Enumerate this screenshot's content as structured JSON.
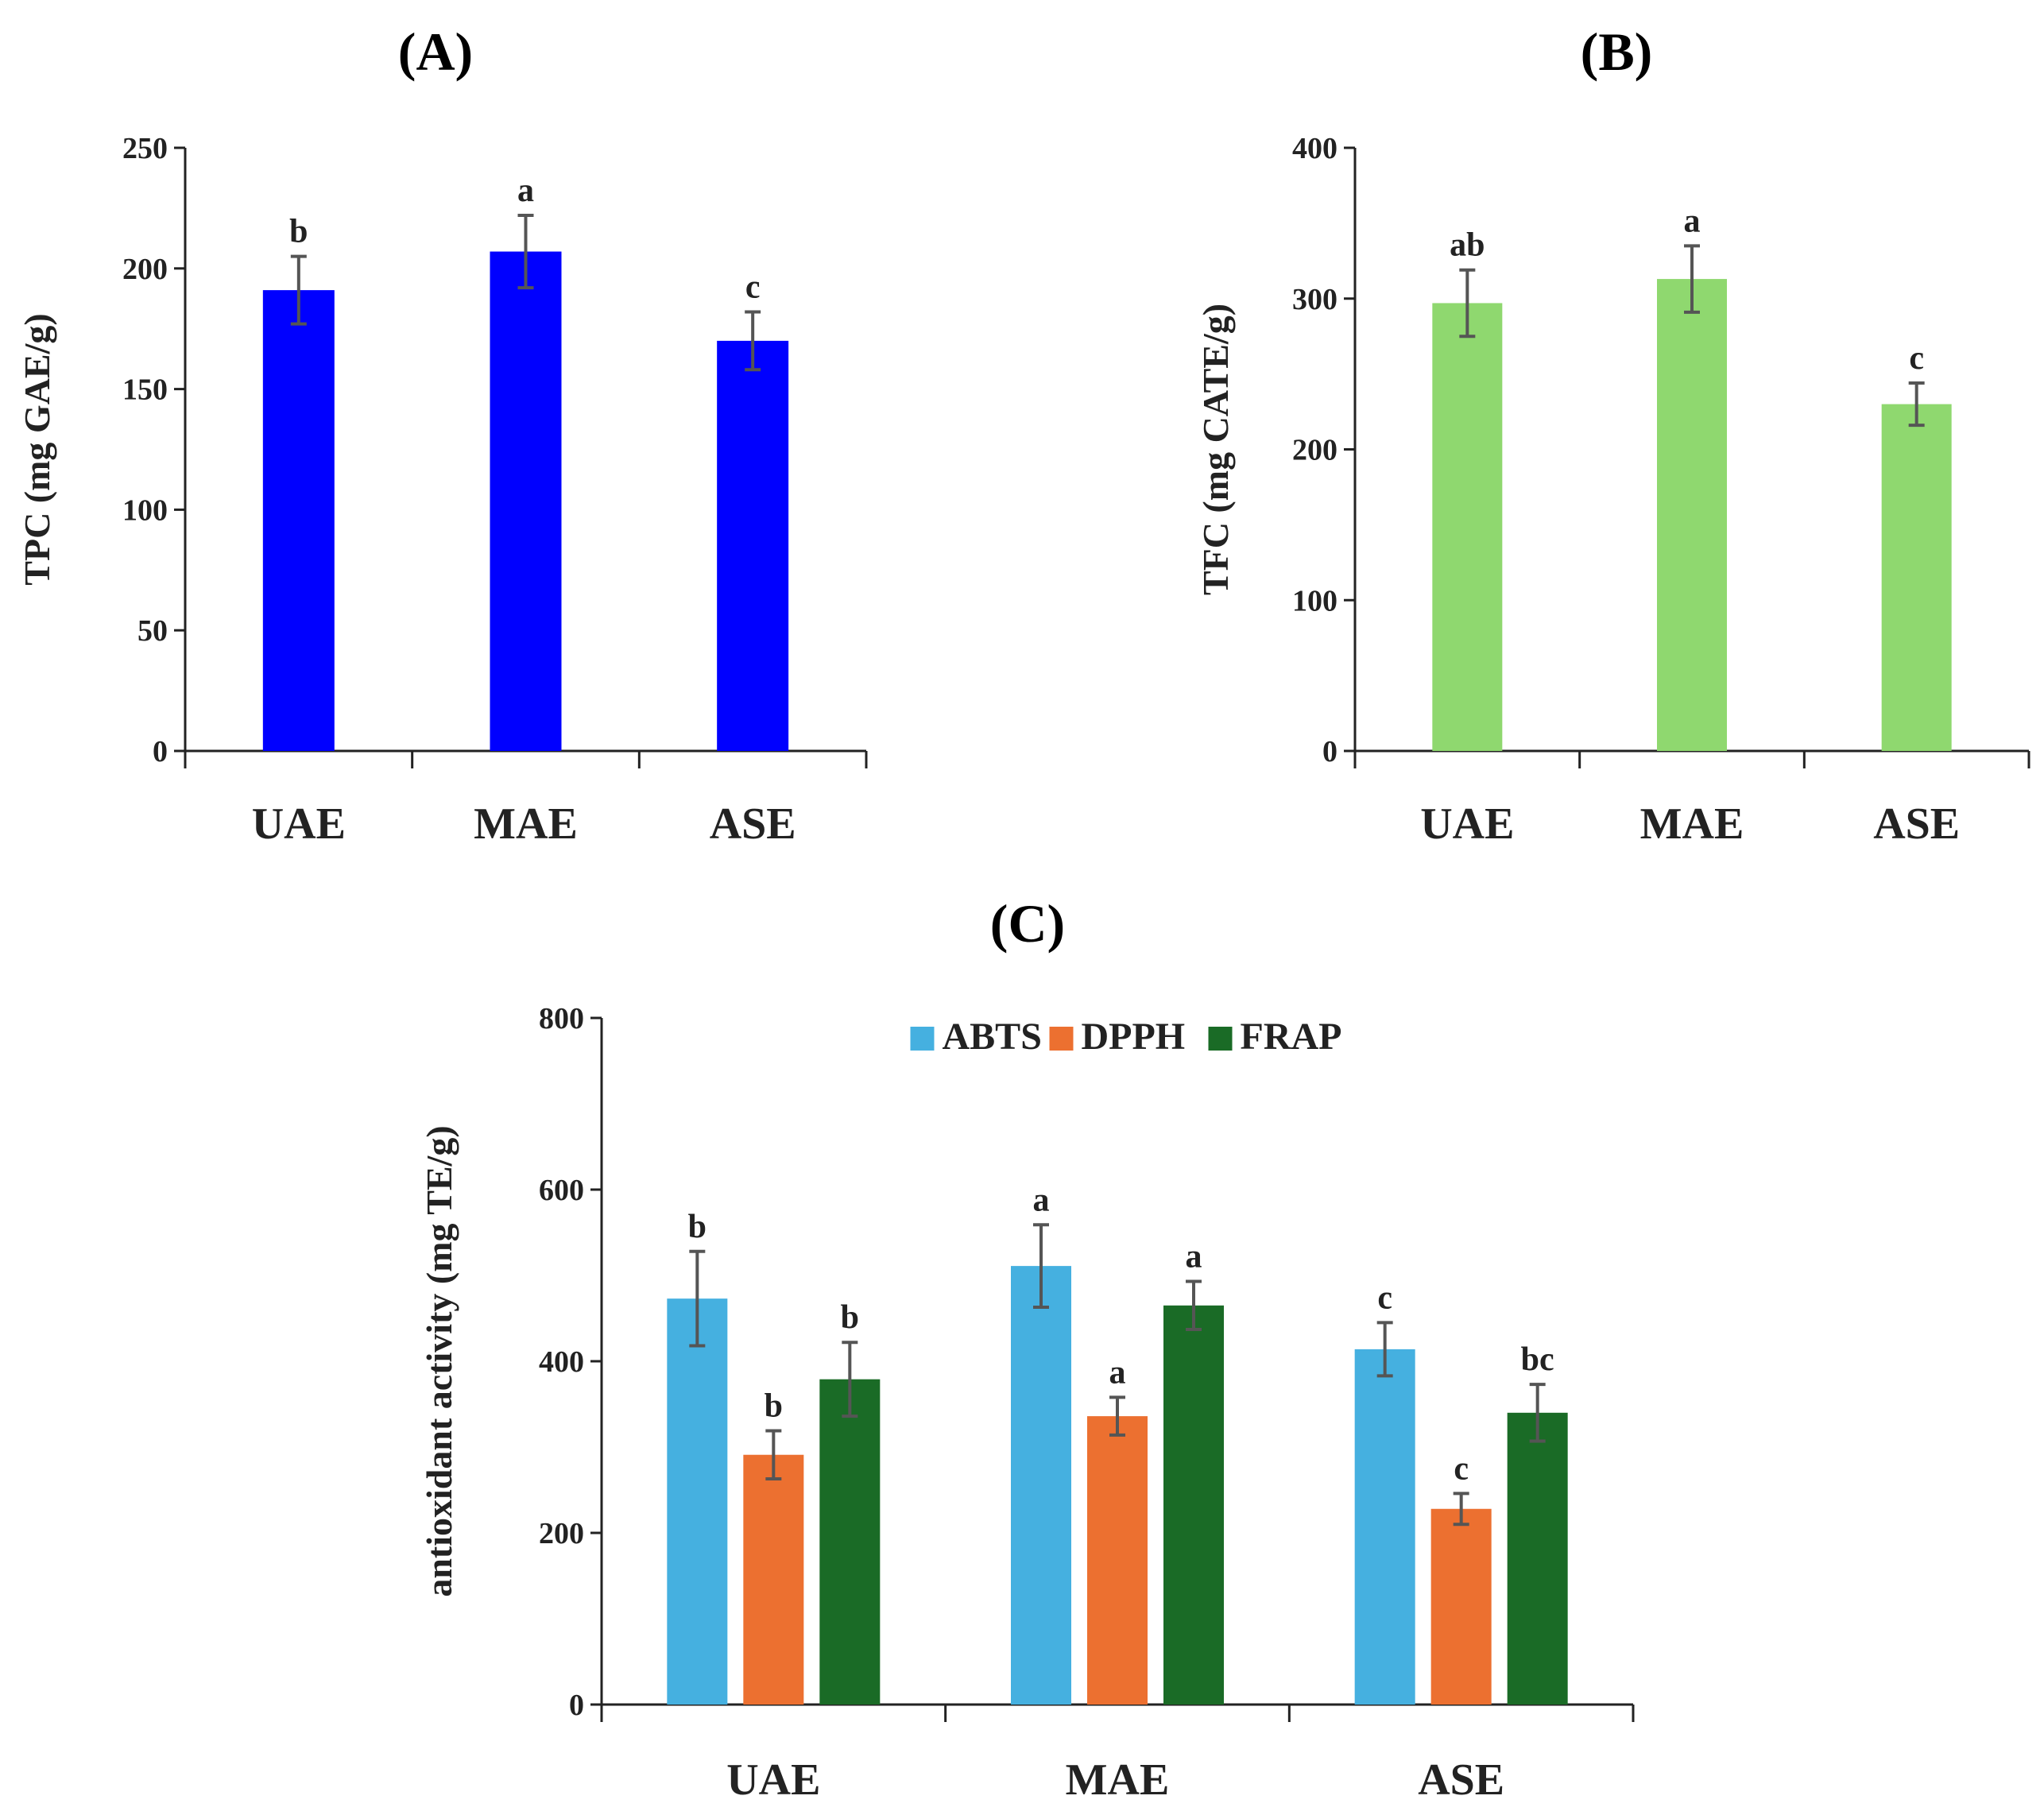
{
  "chart_data": [
    {
      "id": "A",
      "type": "bar",
      "title": "(A)",
      "ylabel": "TPC (mg GAE/g)",
      "xlabel": "",
      "ylim": [
        0,
        250
      ],
      "yticks": [
        0,
        50,
        100,
        150,
        200,
        250
      ],
      "categories": [
        "UAE",
        "MAE",
        "ASE"
      ],
      "series": [
        {
          "name": "TPC",
          "color": "#0000ff",
          "values": [
            191,
            207,
            170
          ],
          "errors": [
            14,
            15,
            12
          ],
          "labels": [
            "b",
            "a",
            "c"
          ]
        }
      ]
    },
    {
      "id": "B",
      "type": "bar",
      "title": "(B)",
      "ylabel": "TFC (mg CATE/g)",
      "xlabel": "",
      "ylim": [
        0,
        400
      ],
      "yticks": [
        0,
        100,
        200,
        300,
        400
      ],
      "categories": [
        "UAE",
        "MAE",
        "ASE"
      ],
      "series": [
        {
          "name": "TFC",
          "color": "#8fd86f",
          "values": [
            297,
            313,
            230
          ],
          "errors": [
            22,
            22,
            14
          ],
          "labels": [
            "ab",
            "a",
            "c"
          ]
        }
      ]
    },
    {
      "id": "C",
      "type": "bar",
      "title": "(C)",
      "ylabel": "antioxidant activity (mg TE/g)",
      "xlabel": "",
      "ylim": [
        0,
        800
      ],
      "yticks": [
        0,
        200,
        400,
        600,
        800
      ],
      "legend": "top-center",
      "categories": [
        "UAE",
        "MAE",
        "ASE"
      ],
      "series": [
        {
          "name": "ABTS",
          "color": "#45b0e0",
          "values": [
            473,
            511,
            414
          ],
          "errors": [
            55,
            48,
            31
          ],
          "labels": [
            "b",
            "a",
            "c"
          ]
        },
        {
          "name": "DPPH",
          "color": "#ec7030",
          "values": [
            291,
            336,
            228
          ],
          "errors": [
            28,
            22,
            18
          ],
          "labels": [
            "b",
            "a",
            "c"
          ]
        },
        {
          "name": "FRAP",
          "color": "#1a6b26",
          "values": [
            379,
            465,
            340
          ],
          "errors": [
            43,
            28,
            33
          ],
          "labels": [
            "b",
            "a",
            "bc"
          ]
        }
      ]
    }
  ]
}
